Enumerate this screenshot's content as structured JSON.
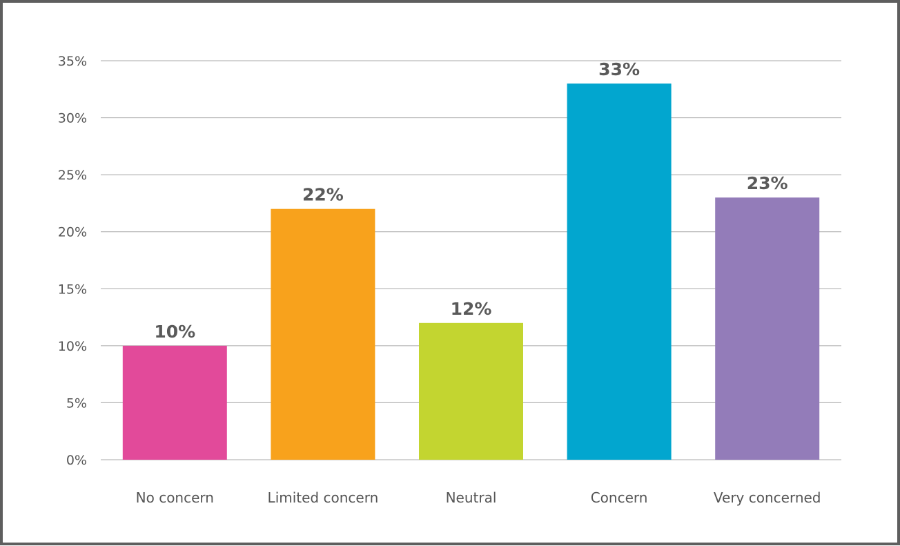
{
  "chart_data": {
    "type": "bar",
    "title": "",
    "xlabel": "",
    "ylabel": "",
    "categories": [
      "No concern",
      "Limited concern",
      "Neutral",
      "Concern",
      "Very concerned"
    ],
    "values": [
      10,
      22,
      12,
      33,
      23
    ],
    "data_labels": [
      "10%",
      "22%",
      "12%",
      "33%",
      "23%"
    ],
    "colors": [
      "#e24a9a",
      "#f8a21c",
      "#c3d530",
      "#02a6cf",
      "#937cb9"
    ],
    "ylim": [
      0,
      35
    ],
    "y_ticks": [
      0,
      5,
      10,
      15,
      20,
      25,
      30,
      35
    ],
    "y_tick_labels": [
      "0%",
      "5%",
      "10%",
      "15%",
      "20%",
      "25%",
      "30%",
      "35%"
    ],
    "grid": true,
    "legend": "none"
  }
}
